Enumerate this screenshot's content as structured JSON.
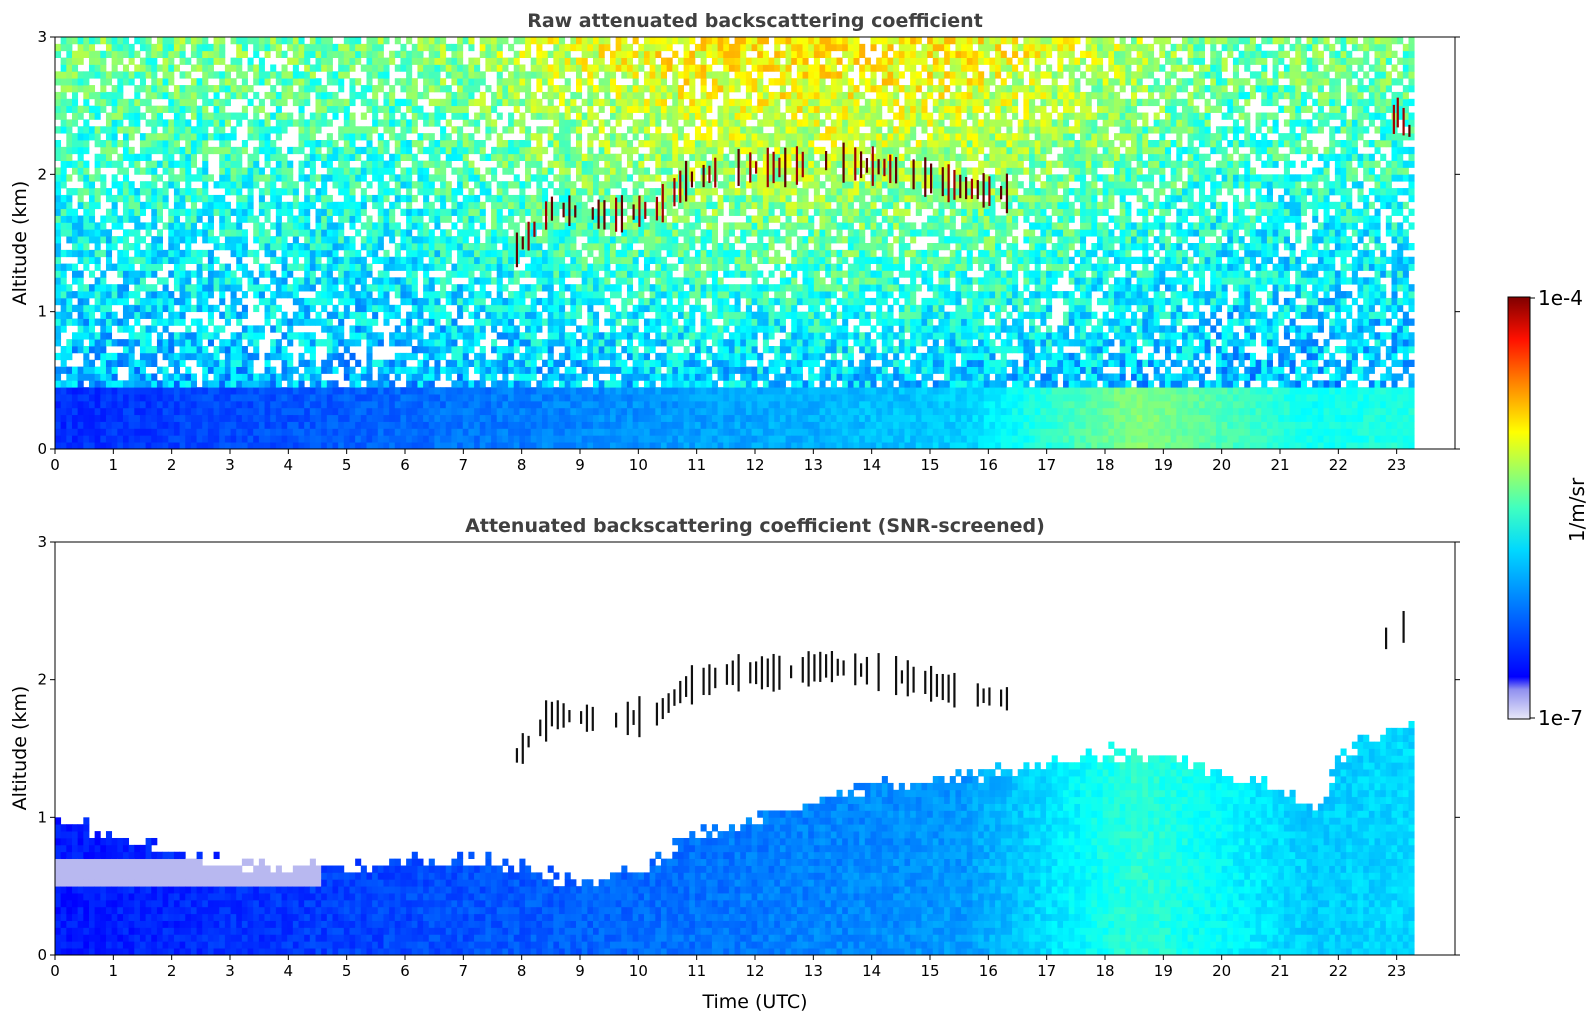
{
  "chart_data": [
    {
      "type": "heatmap",
      "title": "Raw attenuated backscattering coefficient",
      "xlabel": "",
      "ylabel": "Altitude (km)",
      "xlim": [
        0,
        24
      ],
      "ylim": [
        0,
        3
      ],
      "x_ticks": [
        "0",
        "1",
        "2",
        "3",
        "4",
        "5",
        "6",
        "7",
        "8",
        "9",
        "10",
        "11",
        "12",
        "13",
        "14",
        "15",
        "16",
        "17",
        "18",
        "19",
        "20",
        "21",
        "22",
        "23"
      ],
      "y_ticks": [
        "0",
        "1",
        "2",
        "3"
      ],
      "data_end_time": 23.3,
      "features": [
        {
          "description_kind": "boundary-layer",
          "time_range": [
            0,
            23.3
          ],
          "altitude_range": [
            0,
            0.5
          ]
        },
        {
          "description_kind": "cloud-layer",
          "points": [
            [
              7.9,
              1.45
            ],
            [
              8.5,
              1.75
            ],
            [
              9.5,
              1.7
            ],
            [
              10.3,
              1.75
            ],
            [
              10.8,
              1.95
            ],
            [
              11.6,
              2.05
            ],
            [
              12.5,
              2.05
            ],
            [
              13.2,
              2.1
            ],
            [
              14.2,
              2.05
            ],
            [
              15.0,
              1.97
            ],
            [
              15.6,
              1.9
            ],
            [
              16.5,
              1.85
            ]
          ]
        },
        {
          "description_kind": "cloud-layer",
          "points": [
            [
              22.8,
              2.3
            ],
            [
              23.0,
              2.45
            ],
            [
              23.3,
              2.25
            ]
          ]
        }
      ]
    },
    {
      "type": "heatmap",
      "title": "Attenuated backscattering coefficient (SNR-screened)",
      "xlabel": "Time (UTC)",
      "ylabel": "Altitude (km)",
      "xlim": [
        0,
        24
      ],
      "ylim": [
        0,
        3
      ],
      "x_ticks": [
        "0",
        "1",
        "2",
        "3",
        "4",
        "5",
        "6",
        "7",
        "8",
        "9",
        "10",
        "11",
        "12",
        "13",
        "14",
        "15",
        "16",
        "17",
        "18",
        "19",
        "20",
        "21",
        "22",
        "23"
      ],
      "y_ticks": [
        "0",
        "1",
        "2",
        "3"
      ],
      "data_end_time": 23.3,
      "boundary_layer_top": [
        [
          0,
          0.95
        ],
        [
          1,
          0.85
        ],
        [
          2,
          0.72
        ],
        [
          3,
          0.62
        ],
        [
          4,
          0.6
        ],
        [
          5,
          0.62
        ],
        [
          6,
          0.65
        ],
        [
          7,
          0.67
        ],
        [
          8,
          0.6
        ],
        [
          9,
          0.48
        ],
        [
          10,
          0.6
        ],
        [
          11,
          0.85
        ],
        [
          12,
          0.95
        ],
        [
          13,
          1.1
        ],
        [
          14,
          1.2
        ],
        [
          15,
          1.25
        ],
        [
          16,
          1.3
        ],
        [
          17,
          1.35
        ],
        [
          18,
          1.45
        ],
        [
          19,
          1.4
        ],
        [
          20,
          1.3
        ],
        [
          21,
          1.18
        ],
        [
          21.6,
          1.0
        ],
        [
          22,
          1.45
        ],
        [
          23.3,
          1.7
        ]
      ]
    }
  ],
  "colorbar": {
    "max_label": "1e-4",
    "min_label": "1e-7",
    "unit_label": "1/m/sr",
    "colormap": "jet",
    "colors": [
      "#e8e8f8",
      "#0000ff",
      "#00b0ff",
      "#00ffff",
      "#70ff90",
      "#ffff00",
      "#ff8000",
      "#ff0000",
      "#800000"
    ]
  }
}
